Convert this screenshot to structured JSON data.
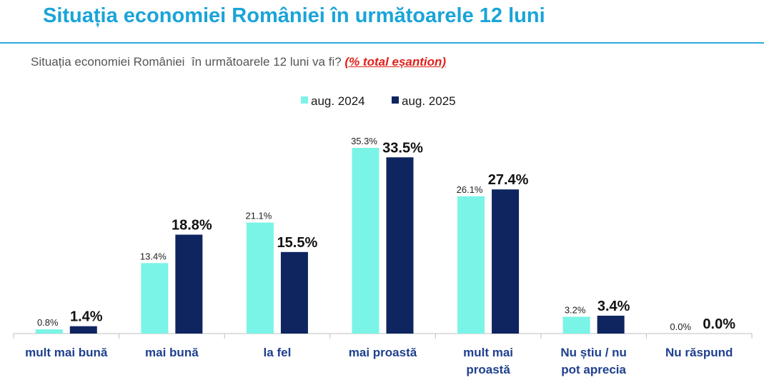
{
  "header": {
    "title": "Situația economiei României în următoarele 12 luni"
  },
  "question": {
    "text": "Situația economiei României  în următoarele 12 luni va fi? ",
    "note": "(% total eșantion)"
  },
  "colors": {
    "title": "#1aa4d8",
    "note": "#e0201b",
    "category_label": "#1f3f8f"
  },
  "chart_data": {
    "type": "bar",
    "title": "",
    "xlabel": "",
    "ylabel": "",
    "ylim": [
      0,
      40
    ],
    "grid": false,
    "legend_position": "top-center",
    "categories": [
      [
        "mult mai bună"
      ],
      [
        "mai bună"
      ],
      [
        "la fel"
      ],
      [
        "mai proastă"
      ],
      [
        "mult mai",
        "proastă"
      ],
      [
        "Nu știu / nu",
        "pot aprecia"
      ],
      [
        "Nu răspund"
      ]
    ],
    "series": [
      {
        "name": "aug. 2024",
        "color": "#7af4e6",
        "values": [
          0.8,
          13.4,
          21.1,
          35.3,
          26.1,
          3.2,
          0.0
        ],
        "labels": [
          "0.8%",
          "13.4%",
          "21.1%",
          "35.3%",
          "26.1%",
          "3.2%",
          "0.0%"
        ]
      },
      {
        "name": "aug. 2025",
        "color": "#0e2560",
        "values": [
          1.4,
          18.8,
          15.5,
          33.5,
          27.4,
          3.4,
          0.0
        ],
        "labels": [
          "1.4%",
          "18.8%",
          "15.5%",
          "33.5%",
          "27.4%",
          "3.4%",
          "0.0%"
        ]
      }
    ]
  }
}
